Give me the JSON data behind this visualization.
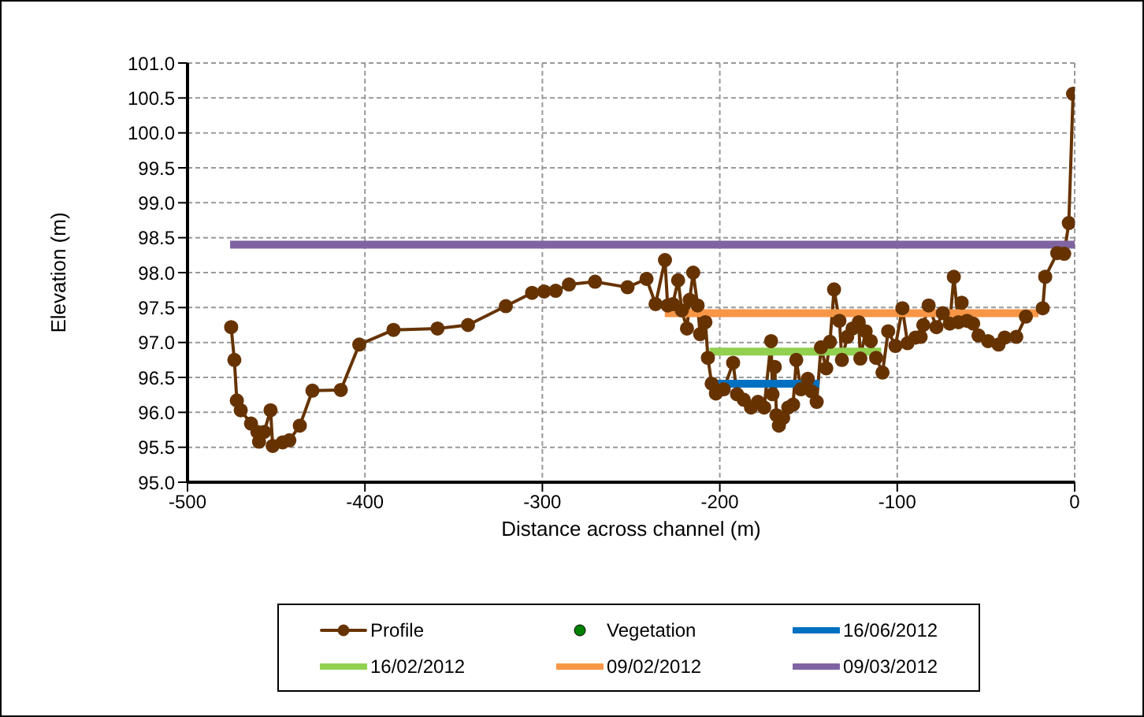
{
  "chart_data": {
    "type": "line",
    "xlabel": "Distance across channel (m)",
    "ylabel": "Elevation  (m)",
    "xlim": [
      -500,
      0
    ],
    "xticks": [
      -500,
      -400,
      -300,
      -200,
      -100,
      0
    ],
    "ylim": [
      95,
      101
    ],
    "yticks": [
      {
        "value": 95,
        "label": "95.0"
      },
      {
        "value": 95.5,
        "label": "95.5"
      },
      {
        "value": 96,
        "label": "96.0"
      },
      {
        "value": 96.5,
        "label": "96.5"
      },
      {
        "value": 97,
        "label": "97.0"
      },
      {
        "value": 97.5,
        "label": "97.5"
      },
      {
        "value": 98,
        "label": "98.0"
      },
      {
        "value": 98.5,
        "label": "98.5"
      },
      {
        "value": 99,
        "label": "99.0"
      },
      {
        "value": 99.5,
        "label": "99.5"
      },
      {
        "value": 100,
        "label": "100.0"
      },
      {
        "value": 100.5,
        "label": "100.5"
      },
      {
        "value": 101,
        "label": "101.0"
      }
    ],
    "grid": true,
    "legend": "bottom",
    "series": [
      {
        "name": "Profile",
        "marker": "circle",
        "color": "#663300",
        "x": [
          -475.4,
          -473.6,
          -472.2,
          -470,
          -464.2,
          -460.6,
          -459.7,
          -456.8,
          -453.2,
          -452,
          -446.4,
          -442.6,
          -436.7,
          -429.6,
          -413.6,
          -403.2,
          -383.9,
          -359.1,
          -341.9,
          -320.6,
          -305.8,
          -299,
          -292.5,
          -285,
          -270.3,
          -252,
          -241.3,
          -236.2,
          -230.9,
          -229.4,
          -226.5,
          -223.5,
          -221.4,
          -218.5,
          -217,
          -215,
          -212.5,
          -211.1,
          -208.1,
          -206.7,
          -204.6,
          -202.2,
          -197.8,
          -192.5,
          -190.3,
          -186.5,
          -182.4,
          -178.5,
          -175,
          -171.1,
          -170.3,
          -169,
          -168.1,
          -166.7,
          -164.3,
          -161.4,
          -158.7,
          -156.9,
          -154.3,
          -150.4,
          -148.3,
          -145.4,
          -143,
          -140,
          -137.9,
          -135.6,
          -132.6,
          -131.2,
          -128.2,
          -125.2,
          -121.7,
          -120.8,
          -117.8,
          -114.9,
          -111.9,
          -108.3,
          -105.1,
          -101,
          -97.1,
          -94.2,
          -89.7,
          -86.8,
          -85.3,
          -82.3,
          -77.9,
          -74.3,
          -70.4,
          -68.1,
          -65.5,
          -63.7,
          -60.7,
          -57.2,
          -54.2,
          -48.8,
          -42.9,
          -39.4,
          -32.9,
          -27.5,
          -18,
          -16.6,
          -9.8,
          -5.9,
          -3.3,
          -0.9
        ],
        "values": [
          97.22,
          96.75,
          96.17,
          96.03,
          95.84,
          95.72,
          95.58,
          95.72,
          96.03,
          95.52,
          95.57,
          95.6,
          95.81,
          96.31,
          96.32,
          96.97,
          97.18,
          97.2,
          97.25,
          97.52,
          97.71,
          97.73,
          97.74,
          97.83,
          97.87,
          97.79,
          97.91,
          97.55,
          98.18,
          97.53,
          97.55,
          97.89,
          97.46,
          97.2,
          97.61,
          98.0,
          97.53,
          97.12,
          97.29,
          96.78,
          96.41,
          96.27,
          96.33,
          96.71,
          96.26,
          96.18,
          96.07,
          96.15,
          96.07,
          97.02,
          96.26,
          96.65,
          95.96,
          95.81,
          95.92,
          96.07,
          96.11,
          96.75,
          96.33,
          96.48,
          96.3,
          96.15,
          96.93,
          96.63,
          97.01,
          97.76,
          97.31,
          96.75,
          97.08,
          97.2,
          97.29,
          96.77,
          97.16,
          97.02,
          96.78,
          96.57,
          97.16,
          96.95,
          97.49,
          96.99,
          97.07,
          97.08,
          97.25,
          97.53,
          97.22,
          97.42,
          97.27,
          97.94,
          97.29,
          97.57,
          97.31,
          97.27,
          97.1,
          97.02,
          96.97,
          97.07,
          97.08,
          97.37,
          97.49,
          97.94,
          98.28,
          98.27,
          98.71,
          100.56
        ]
      },
      {
        "name": "Vegetation",
        "type": "scatter",
        "marker": "circle",
        "color": "#008000"
      },
      {
        "name": "16/06/2012",
        "marker": "none",
        "color": "#0070c0",
        "x": [
          -205.8,
          -143.9
        ],
        "values": [
          96.41,
          96.41
        ]
      },
      {
        "name": "16/02/2012",
        "marker": "none",
        "color": "#92d050",
        "x": [
          -205.8,
          -109
        ],
        "values": [
          96.87,
          96.87
        ]
      },
      {
        "name": "09/02/2012",
        "marker": "none",
        "color": "#f79646",
        "x": [
          -231,
          -20.4
        ],
        "values": [
          97.42,
          97.42
        ]
      },
      {
        "name": "09/03/2012",
        "marker": "none",
        "color": "#8064a2",
        "x": [
          -476,
          0
        ],
        "values": [
          98.4,
          98.4
        ]
      }
    ]
  }
}
